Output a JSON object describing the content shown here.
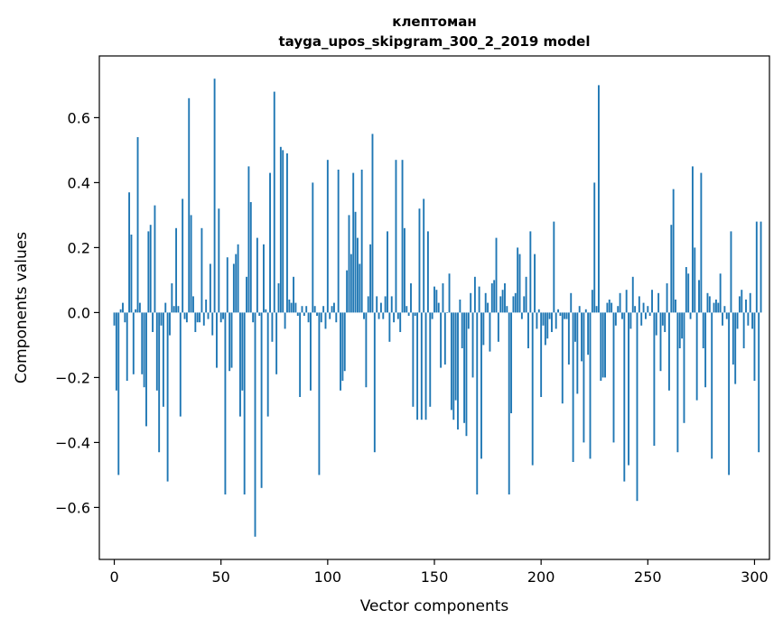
{
  "chart_data": {
    "type": "bar",
    "title": "клептоман",
    "subtitle": "tayga_upos_skipgram_300_2_2019 model",
    "xlabel": "Vector components",
    "ylabel": "Components values",
    "xlim": [
      -7,
      307
    ],
    "ylim": [
      -0.76,
      0.79
    ],
    "xticks": [
      0,
      50,
      100,
      150,
      200,
      250,
      300
    ],
    "xtick_labels": [
      "0",
      "50",
      "100",
      "150",
      "200",
      "250",
      "300"
    ],
    "yticks": [
      -0.6,
      -0.4,
      -0.2,
      0.0,
      0.2,
      0.4,
      0.6
    ],
    "ytick_labels": [
      "−0.6",
      "−0.4",
      "−0.2",
      "0.0",
      "0.2",
      "0.4",
      "0.6"
    ],
    "grid": false,
    "bar_color": "#1f77b4",
    "series": [
      {
        "values": [
          -0.04,
          -0.24,
          -0.5,
          0.01,
          0.03,
          -0.03,
          -0.21,
          0.37,
          0.24,
          -0.19,
          0.01,
          0.54,
          0.03,
          -0.19,
          -0.23,
          -0.35,
          0.25,
          0.27,
          -0.06,
          0.33,
          -0.24,
          -0.43,
          -0.04,
          -0.29,
          0.03,
          -0.52,
          -0.07,
          0.09,
          0.02,
          0.26,
          0.02,
          -0.32,
          0.35,
          -0.02,
          -0.03,
          0.66,
          0.3,
          0.05,
          -0.06,
          -0.03,
          -0.03,
          0.26,
          -0.04,
          0.04,
          -0.02,
          0.15,
          -0.07,
          0.72,
          -0.17,
          0.32,
          -0.03,
          -0.02,
          -0.56,
          0.17,
          -0.18,
          -0.17,
          0.15,
          0.18,
          0.21,
          -0.32,
          -0.24,
          -0.56,
          0.11,
          0.45,
          0.34,
          -0.03,
          -0.69,
          0.23,
          -0.01,
          -0.54,
          0.21,
          0.01,
          -0.32,
          0.43,
          -0.09,
          0.68,
          -0.19,
          0.09,
          0.51,
          0.5,
          -0.05,
          0.49,
          0.04,
          0.03,
          0.11,
          0.03,
          -0.01,
          -0.26,
          0.02,
          -0.01,
          0.02,
          -0.03,
          -0.24,
          0.4,
          0.02,
          -0.01,
          -0.5,
          -0.03,
          0.02,
          -0.05,
          0.47,
          -0.02,
          0.02,
          0.03,
          -0.03,
          0.44,
          -0.24,
          -0.21,
          -0.18,
          0.13,
          0.3,
          0.18,
          0.43,
          0.31,
          0.23,
          0.15,
          0.44,
          -0.02,
          -0.23,
          0.05,
          0.21,
          0.55,
          -0.43,
          0.05,
          -0.02,
          0.03,
          -0.02,
          0.05,
          0.25,
          -0.09,
          0.05,
          -0.03,
          0.47,
          -0.02,
          -0.06,
          0.47,
          0.26,
          0.02,
          -0.01,
          0.09,
          -0.29,
          -0.01,
          -0.33,
          0.32,
          -0.33,
          0.35,
          -0.33,
          0.25,
          -0.29,
          -0.02,
          0.08,
          0.07,
          0.03,
          -0.17,
          0.09,
          -0.16,
          0.0,
          0.12,
          -0.3,
          -0.33,
          -0.27,
          -0.36,
          0.04,
          -0.11,
          -0.34,
          -0.38,
          -0.05,
          0.06,
          -0.2,
          0.11,
          -0.56,
          0.08,
          -0.45,
          -0.1,
          0.06,
          0.03,
          -0.12,
          0.09,
          0.1,
          0.23,
          -0.09,
          0.05,
          0.07,
          0.09,
          0.02,
          -0.56,
          -0.31,
          0.05,
          0.06,
          0.2,
          0.18,
          -0.02,
          0.05,
          0.11,
          -0.11,
          0.25,
          -0.47,
          0.18,
          -0.05,
          0.01,
          -0.26,
          -0.04,
          -0.1,
          -0.08,
          -0.02,
          -0.06,
          0.28,
          -0.05,
          0.01,
          -0.01,
          -0.28,
          -0.02,
          -0.02,
          -0.16,
          0.06,
          -0.46,
          -0.09,
          -0.25,
          0.02,
          -0.15,
          -0.4,
          0.01,
          -0.13,
          -0.45,
          0.07,
          0.4,
          0.02,
          0.7,
          -0.21,
          -0.2,
          -0.2,
          0.03,
          0.04,
          0.03,
          -0.4,
          -0.04,
          0.02,
          0.06,
          -0.02,
          -0.52,
          0.07,
          -0.47,
          -0.05,
          0.11,
          0.02,
          -0.58,
          0.05,
          -0.04,
          0.03,
          -0.02,
          0.02,
          -0.01,
          0.07,
          -0.41,
          -0.07,
          0.06,
          -0.18,
          -0.04,
          -0.06,
          0.09,
          -0.24,
          0.27,
          0.38,
          0.04,
          -0.43,
          -0.11,
          -0.08,
          -0.34,
          0.14,
          0.12,
          -0.02,
          0.45,
          0.2,
          -0.27,
          0.1,
          0.43,
          -0.11,
          -0.23,
          0.06,
          0.05,
          -0.45,
          0.03,
          0.04,
          0.03,
          0.12,
          -0.04,
          0.02,
          -0.02,
          -0.5,
          0.25,
          -0.16,
          -0.22,
          -0.05,
          0.05,
          0.07,
          -0.11,
          0.04,
          -0.04,
          0.06,
          -0.05,
          -0.21,
          0.28,
          -0.43,
          0.28
        ]
      }
    ]
  }
}
